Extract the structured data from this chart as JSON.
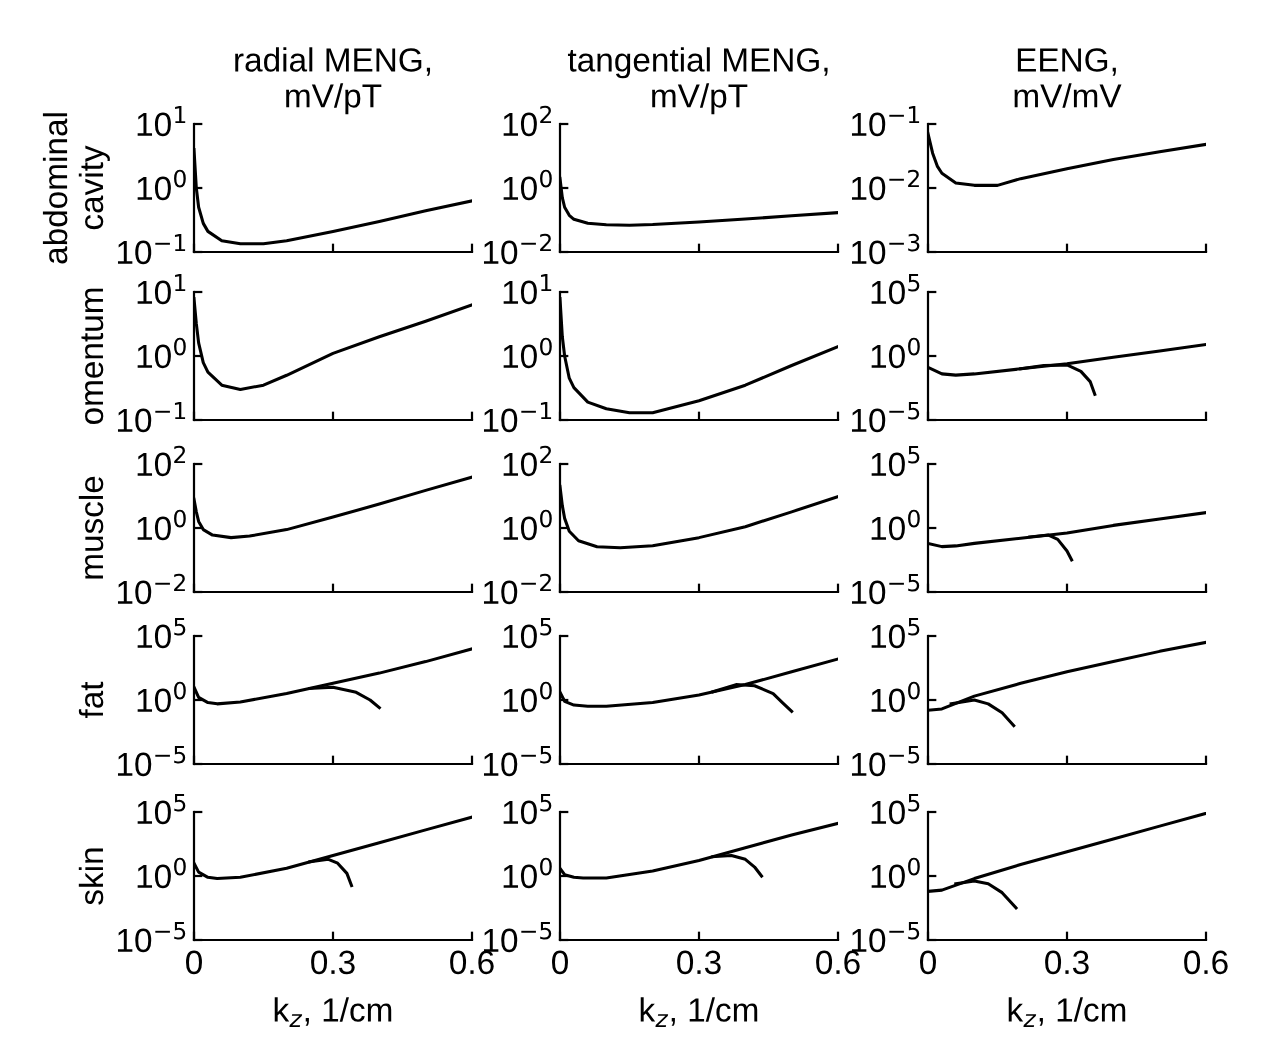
{
  "chart_data": [
    {
      "type": "line",
      "log": "y",
      "title": "radial MENG,\nmV/pT",
      "ylabel": "abdominal\ncavity",
      "tick_labels": "y",
      "xlim": [
        0,
        0.6
      ],
      "xticks": [
        0,
        0.3,
        0.6
      ],
      "ylim": [
        0.1,
        10
      ],
      "yticks": [
        {
          "value": 0.1,
          "label": "10$^{−1}$"
        },
        {
          "value": 1,
          "label": "10$^{0}$"
        },
        {
          "value": 10,
          "label": "10$^{1}$"
        }
      ],
      "series": [
        {
          "color": "#000000",
          "x": [
            0,
            0.005,
            0.01,
            0.02,
            0.03,
            0.06,
            0.1,
            0.15,
            0.2,
            0.3,
            0.4,
            0.5,
            0.6
          ],
          "values": [
            3.98,
            1.0,
            0.5,
            0.28,
            0.21,
            0.15,
            0.135,
            0.135,
            0.15,
            0.21,
            0.3,
            0.44,
            0.63
          ]
        }
      ]
    },
    {
      "type": "line",
      "log": "y",
      "title": "tangential MENG,\nmV/pT",
      "tick_labels": "y",
      "xlim": [
        0,
        0.6
      ],
      "xticks": [
        0,
        0.3,
        0.6
      ],
      "ylim": [
        0.01,
        100
      ],
      "yticks": [
        {
          "value": 0.01,
          "label": "10$^{−2}$"
        },
        {
          "value": 1,
          "label": "10$^{0}$"
        },
        {
          "value": 100,
          "label": "10$^{2}$"
        }
      ],
      "series": [
        {
          "color": "#000000",
          "x": [
            0,
            0.005,
            0.01,
            0.02,
            0.03,
            0.06,
            0.1,
            0.15,
            0.2,
            0.3,
            0.4,
            0.5,
            0.6
          ],
          "values": [
            2.0,
            0.5,
            0.25,
            0.14,
            0.105,
            0.079,
            0.071,
            0.069,
            0.072,
            0.087,
            0.107,
            0.135,
            0.17
          ]
        }
      ]
    },
    {
      "type": "line",
      "log": "y",
      "title": "EENG,\nmV/mV",
      "tick_labels": "y",
      "xlim": [
        0,
        0.6
      ],
      "xticks": [
        0,
        0.3,
        0.6
      ],
      "ylim": [
        0.001,
        0.1
      ],
      "yticks": [
        {
          "value": 0.001,
          "label": "10$^{−3}$"
        },
        {
          "value": 0.01,
          "label": "10$^{−2}$"
        },
        {
          "value": 0.1,
          "label": "10$^{−1}$"
        }
      ],
      "series": [
        {
          "color": "#000000",
          "x": [
            0,
            0.01,
            0.02,
            0.03,
            0.06,
            0.1,
            0.15,
            0.2,
            0.3,
            0.4,
            0.5,
            0.6
          ],
          "values": [
            0.071,
            0.035,
            0.022,
            0.017,
            0.012,
            0.011,
            0.011,
            0.014,
            0.02,
            0.028,
            0.037,
            0.048
          ]
        }
      ]
    },
    {
      "type": "line",
      "log": "y",
      "ylabel": "omentum",
      "tick_labels": "y",
      "xlim": [
        0,
        0.6
      ],
      "xticks": [
        0,
        0.3,
        0.6
      ],
      "ylim": [
        0.1,
        10
      ],
      "yticks": [
        {
          "value": 0.1,
          "label": "10$^{−1}$"
        },
        {
          "value": 1,
          "label": "10$^{0}$"
        },
        {
          "value": 10,
          "label": "10$^{1}$"
        }
      ],
      "series": [
        {
          "color": "#000000",
          "x": [
            0,
            0.005,
            0.01,
            0.02,
            0.03,
            0.06,
            0.1,
            0.15,
            0.2,
            0.3,
            0.4,
            0.5,
            0.6
          ],
          "values": [
            7.9,
            3.2,
            1.6,
            0.79,
            0.56,
            0.35,
            0.3,
            0.35,
            0.5,
            1.1,
            2.0,
            3.5,
            6.3
          ]
        }
      ]
    },
    {
      "type": "line",
      "log": "y",
      "tick_labels": "y",
      "xlim": [
        0,
        0.6
      ],
      "xticks": [
        0,
        0.3,
        0.6
      ],
      "ylim": [
        0.1,
        10
      ],
      "yticks": [
        {
          "value": 0.1,
          "label": "10$^{−1}$"
        },
        {
          "value": 1,
          "label": "10$^{0}$"
        },
        {
          "value": 10,
          "label": "10$^{1}$"
        }
      ],
      "series": [
        {
          "color": "#000000",
          "x": [
            0,
            0.005,
            0.01,
            0.02,
            0.03,
            0.06,
            0.1,
            0.15,
            0.2,
            0.3,
            0.4,
            0.5,
            0.6
          ],
          "values": [
            7.9,
            2.0,
            1.0,
            0.45,
            0.32,
            0.19,
            0.15,
            0.13,
            0.13,
            0.2,
            0.35,
            0.71,
            1.4
          ]
        }
      ]
    },
    {
      "type": "line",
      "log": "y",
      "tick_labels": "y",
      "xlim": [
        0,
        0.6
      ],
      "xticks": [
        0,
        0.3,
        0.6
      ],
      "ylim": [
        1e-05,
        100000
      ],
      "yticks": [
        {
          "value": 1e-05,
          "label": "10$^{−5}$"
        },
        {
          "value": 1,
          "label": "10$^{0}$"
        },
        {
          "value": 100000,
          "label": "10$^{5}$"
        }
      ],
      "series": [
        {
          "color": "#000000",
          "x": [
            0,
            0.03,
            0.06,
            0.1,
            0.2,
            0.3,
            0.4,
            0.5,
            0.6
          ],
          "values": [
            0.13,
            0.04,
            0.032,
            0.04,
            0.1,
            0.25,
            0.79,
            2.5,
            7.9
          ]
        },
        {
          "color": "#000000",
          "x": [
            0.2,
            0.25,
            0.3,
            0.33,
            0.35,
            0.36
          ],
          "values": [
            0.1,
            0.18,
            0.2,
            0.063,
            0.01,
            0.001
          ]
        }
      ]
    },
    {
      "type": "line",
      "log": "y",
      "ylabel": "muscle",
      "tick_labels": "y",
      "xlim": [
        0,
        0.6
      ],
      "xticks": [
        0,
        0.3,
        0.6
      ],
      "ylim": [
        0.01,
        100
      ],
      "yticks": [
        {
          "value": 0.01,
          "label": "10$^{−2}$"
        },
        {
          "value": 1,
          "label": "10$^{0}$"
        },
        {
          "value": 100,
          "label": "10$^{2}$"
        }
      ],
      "series": [
        {
          "color": "#000000",
          "x": [
            0,
            0.005,
            0.01,
            0.02,
            0.04,
            0.08,
            0.12,
            0.2,
            0.3,
            0.4,
            0.5,
            0.6
          ],
          "values": [
            7.9,
            3.2,
            1.6,
            0.89,
            0.6,
            0.5,
            0.56,
            0.89,
            2.2,
            5.6,
            15,
            39
          ]
        }
      ]
    },
    {
      "type": "line",
      "log": "y",
      "tick_labels": "y",
      "xlim": [
        0,
        0.6
      ],
      "xticks": [
        0,
        0.3,
        0.6
      ],
      "ylim": [
        0.01,
        100
      ],
      "yticks": [
        {
          "value": 0.01,
          "label": "10$^{−2}$"
        },
        {
          "value": 1,
          "label": "10$^{0}$"
        },
        {
          "value": 100,
          "label": "10$^{2}$"
        }
      ],
      "series": [
        {
          "color": "#000000",
          "x": [
            0,
            0.005,
            0.01,
            0.02,
            0.04,
            0.08,
            0.13,
            0.2,
            0.3,
            0.4,
            0.5,
            0.6
          ],
          "values": [
            20,
            5.0,
            2.0,
            0.79,
            0.4,
            0.26,
            0.24,
            0.28,
            0.5,
            1.1,
            3.2,
            9.5
          ]
        }
      ]
    },
    {
      "type": "line",
      "log": "y",
      "tick_labels": "y",
      "xlim": [
        0,
        0.6
      ],
      "xticks": [
        0,
        0.3,
        0.6
      ],
      "ylim": [
        1e-05,
        100000
      ],
      "yticks": [
        {
          "value": 1e-05,
          "label": "10$^{−5}$"
        },
        {
          "value": 1,
          "label": "10$^{0}$"
        },
        {
          "value": 100000,
          "label": "10$^{5}$"
        }
      ],
      "series": [
        {
          "color": "#000000",
          "x": [
            0,
            0.03,
            0.06,
            0.1,
            0.2,
            0.3,
            0.4,
            0.5,
            0.6
          ],
          "values": [
            0.063,
            0.035,
            0.04,
            0.063,
            0.16,
            0.4,
            1.6,
            5.0,
            16
          ]
        },
        {
          "color": "#000000",
          "x": [
            0.22,
            0.26,
            0.28,
            0.3,
            0.31
          ],
          "values": [
            0.2,
            0.28,
            0.13,
            0.016,
            0.0032
          ]
        }
      ]
    },
    {
      "type": "line",
      "log": "y",
      "ylabel": "fat",
      "tick_labels": "y",
      "xlim": [
        0,
        0.6
      ],
      "xticks": [
        0,
        0.3,
        0.6
      ],
      "ylim": [
        1e-05,
        100000
      ],
      "yticks": [
        {
          "value": 1e-05,
          "label": "10$^{−5}$"
        },
        {
          "value": 1,
          "label": "10$^{0}$"
        },
        {
          "value": 100000,
          "label": "10$^{5}$"
        }
      ],
      "series": [
        {
          "color": "#000000",
          "x": [
            0,
            0.01,
            0.03,
            0.05,
            0.1,
            0.2,
            0.3,
            0.4,
            0.5,
            0.6
          ],
          "values": [
            10,
            1.6,
            0.63,
            0.5,
            0.71,
            3.2,
            20,
            126,
            1000,
            10000
          ]
        },
        {
          "color": "#000000",
          "x": [
            0.25,
            0.3,
            0.35,
            0.38,
            0.4
          ],
          "values": [
            7.9,
            10,
            4,
            1,
            0.25
          ]
        }
      ]
    },
    {
      "type": "line",
      "log": "y",
      "tick_labels": "y",
      "xlim": [
        0,
        0.6
      ],
      "xticks": [
        0,
        0.3,
        0.6
      ],
      "ylim": [
        1e-05,
        100000
      ],
      "yticks": [
        {
          "value": 1e-05,
          "label": "10$^{−5}$"
        },
        {
          "value": 1,
          "label": "10$^{0}$"
        },
        {
          "value": 100000,
          "label": "10$^{5}$"
        }
      ],
      "series": [
        {
          "color": "#000000",
          "x": [
            0,
            0.01,
            0.03,
            0.06,
            0.1,
            0.2,
            0.3,
            0.4,
            0.5,
            0.6
          ],
          "values": [
            4,
            0.79,
            0.4,
            0.32,
            0.32,
            0.63,
            2.5,
            16,
            160,
            1600
          ]
        },
        {
          "color": "#000000",
          "x": [
            0.33,
            0.38,
            0.42,
            0.46,
            0.48,
            0.5
          ],
          "values": [
            4.4,
            16,
            13,
            3.2,
            0.63,
            0.13
          ]
        }
      ]
    },
    {
      "type": "line",
      "log": "y",
      "tick_labels": "y",
      "xlim": [
        0,
        0.6
      ],
      "xticks": [
        0,
        0.3,
        0.6
      ],
      "ylim": [
        1e-05,
        100000
      ],
      "yticks": [
        {
          "value": 1e-05,
          "label": "10$^{−5}$"
        },
        {
          "value": 1,
          "label": "10$^{0}$"
        },
        {
          "value": 100000,
          "label": "10$^{5}$"
        }
      ],
      "series": [
        {
          "color": "#000000",
          "x": [
            0,
            0.03,
            0.1,
            0.2,
            0.3,
            0.4,
            0.5,
            0.6
          ],
          "values": [
            0.16,
            0.2,
            2.0,
            20,
            160,
            1000,
            6300,
            32000
          ]
        },
        {
          "color": "#000000",
          "x": [
            0.05,
            0.1,
            0.13,
            0.16,
            0.185
          ],
          "values": [
            0.5,
            1.0,
            0.5,
            0.1,
            0.01
          ]
        }
      ]
    },
    {
      "type": "line",
      "log": "y",
      "ylabel": "skin",
      "xlabel": "k$_{z}$, 1/cm",
      "xlim": [
        0,
        0.6
      ],
      "xticks": [
        0,
        0.3,
        0.6
      ],
      "ylim": [
        1e-05,
        100000
      ],
      "yticks": [
        {
          "value": 1e-05,
          "label": "10$^{−5}$"
        },
        {
          "value": 1,
          "label": "10$^{0}$"
        },
        {
          "value": 100000,
          "label": "10$^{5}$"
        }
      ],
      "series": [
        {
          "color": "#000000",
          "x": [
            0,
            0.01,
            0.03,
            0.05,
            0.1,
            0.2,
            0.3,
            0.4,
            0.5,
            0.6
          ],
          "values": [
            10,
            2.0,
            0.79,
            0.63,
            0.79,
            4.0,
            40,
            400,
            4000,
            40000
          ]
        },
        {
          "color": "#000000",
          "x": [
            0.25,
            0.29,
            0.31,
            0.33,
            0.34
          ],
          "values": [
            13,
            20,
            10,
            1.6,
            0.18
          ]
        }
      ]
    },
    {
      "type": "line",
      "log": "y",
      "xlabel": "k$_{z}$, 1/cm",
      "xlim": [
        0,
        0.6
      ],
      "xticks": [
        0,
        0.3,
        0.6
      ],
      "ylim": [
        1e-05,
        100000
      ],
      "yticks": [
        {
          "value": 1e-05,
          "label": "10$^{−5}$"
        },
        {
          "value": 1,
          "label": "10$^{0}$"
        },
        {
          "value": 100000,
          "label": "10$^{5}$"
        }
      ],
      "series": [
        {
          "color": "#000000",
          "x": [
            0,
            0.01,
            0.03,
            0.05,
            0.1,
            0.2,
            0.3,
            0.4,
            0.5,
            0.6
          ],
          "values": [
            4.0,
            1.26,
            0.79,
            0.71,
            0.71,
            2.5,
            16,
            160,
            1600,
            13000
          ]
        },
        {
          "color": "#000000",
          "x": [
            0.33,
            0.37,
            0.4,
            0.42,
            0.435
          ],
          "values": [
            32,
            40,
            20,
            5.0,
            1.0
          ]
        }
      ]
    },
    {
      "type": "line",
      "log": "y",
      "xlabel": "k$_{z}$, 1/cm",
      "xlim": [
        0,
        0.6
      ],
      "xticks": [
        0,
        0.3,
        0.6
      ],
      "ylim": [
        1e-05,
        100000
      ],
      "yticks": [
        {
          "value": 1e-05,
          "label": "10$^{−5}$"
        },
        {
          "value": 1,
          "label": "10$^{0}$"
        },
        {
          "value": 100000,
          "label": "10$^{5}$"
        }
      ],
      "series": [
        {
          "color": "#000000",
          "x": [
            0,
            0.03,
            0.1,
            0.2,
            0.3,
            0.4,
            0.5,
            0.6
          ],
          "values": [
            0.063,
            0.079,
            0.63,
            7.9,
            79,
            790,
            7900,
            79000
          ]
        },
        {
          "color": "#000000",
          "x": [
            0.06,
            0.1,
            0.13,
            0.16,
            0.19
          ],
          "values": [
            0.25,
            0.4,
            0.25,
            0.05,
            0.0032
          ]
        }
      ]
    }
  ]
}
